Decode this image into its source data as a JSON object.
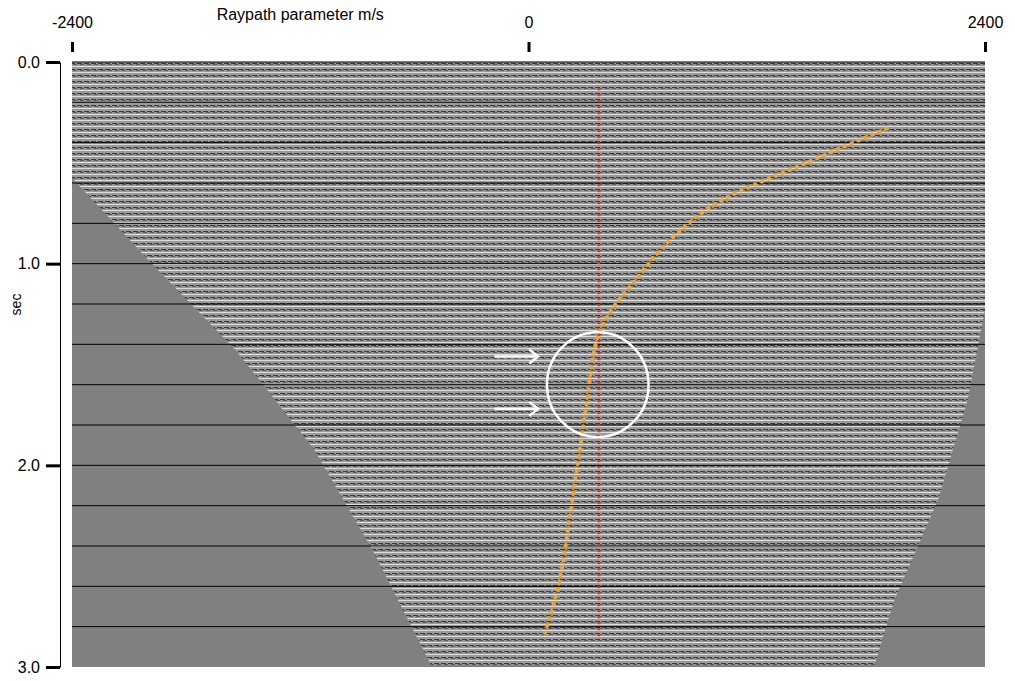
{
  "chart_data": {
    "type": "seismic_gather",
    "x_label": "Raypath parameter m/s",
    "y_label": "sec",
    "xlim": [
      -2400,
      2400
    ],
    "ylim": [
      0,
      3
    ],
    "xticks": [
      -2400,
      0,
      2400
    ],
    "yticks": [
      {
        "value": 0,
        "label": "0.0"
      },
      {
        "value": 1,
        "label": "1.0"
      },
      {
        "value": 2,
        "label": "2.0"
      },
      {
        "value": 3,
        "label": "3.0"
      }
    ],
    "data_region": {
      "x": [
        -2400,
        2400,
        2400,
        2308,
        2154,
        1923,
        1820,
        -513,
        -820,
        -1128,
        -1538,
        -2000,
        -2400
      ],
      "y": [
        0,
        0,
        1.23,
        1.68,
        2.17,
        2.67,
        2.99,
        2.99,
        2.42,
        1.92,
        1.43,
        0.98,
        0.575
      ]
    },
    "time_lines": [
      0.2,
      0.4,
      0.6,
      0.8,
      1.0,
      1.2,
      1.4,
      1.6,
      1.8,
      2.0,
      2.2,
      2.4,
      2.6,
      2.8
    ],
    "curve": {
      "x": [
        1882,
        1436,
        1026,
        769,
        564,
        436,
        369,
        308,
        231,
        138,
        87
      ],
      "y": [
        0.33,
        0.51,
        0.68,
        0.86,
        1.08,
        1.23,
        1.35,
        1.68,
        2.17,
        2.67,
        2.83
      ],
      "color": "#f5a623",
      "line_style": "dotted"
    },
    "vertical_line": {
      "x": 370,
      "y": [
        0.13,
        2.85
      ],
      "color": "#e8312a",
      "line_style": "dotted"
    },
    "circle": {
      "x": 364,
      "y": 1.6,
      "rx": 267,
      "ry": 0.26,
      "color": "#ffffff"
    },
    "arrows": [
      {
        "x": [
          -179,
          51
        ],
        "y": 1.46,
        "color": "#ffffff"
      },
      {
        "x": [
          -179,
          51
        ],
        "y": 1.72,
        "color": "#ffffff"
      }
    ]
  }
}
